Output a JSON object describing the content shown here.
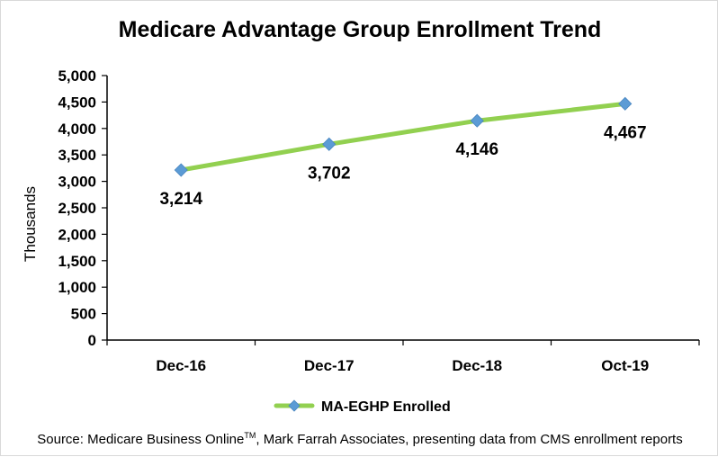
{
  "chart_data": {
    "type": "line",
    "title": "Medicare Advantage Group Enrollment Trend",
    "xlabel": "",
    "ylabel": "Thousands",
    "categories": [
      "Dec-16",
      "Dec-17",
      "Dec-18",
      "Oct-19"
    ],
    "series": [
      {
        "name": "MA-EGHP Enrolled",
        "values": [
          3214,
          3702,
          4146,
          4467
        ],
        "data_labels": [
          "3,214",
          "3,702",
          "4,146",
          "4,467"
        ],
        "line_color": "#92d050",
        "marker_color": "#5b9bd5",
        "marker": "diamond"
      }
    ],
    "ylim": [
      0,
      5000
    ],
    "yticks": [
      0,
      500,
      1000,
      1500,
      2000,
      2500,
      3000,
      3500,
      4000,
      4500,
      5000
    ],
    "ytick_labels": [
      "0",
      "500",
      "1,000",
      "1,500",
      "2,000",
      "2,500",
      "3,000",
      "3,500",
      "4,000",
      "4,500",
      "5,000"
    ],
    "grid": false,
    "legend_position": "bottom"
  },
  "source": {
    "prefix": "Source: Medicare Business Online",
    "trademark": "TM",
    "suffix": ", Mark Farrah Associates, presenting data from CMS enrollment reports"
  }
}
